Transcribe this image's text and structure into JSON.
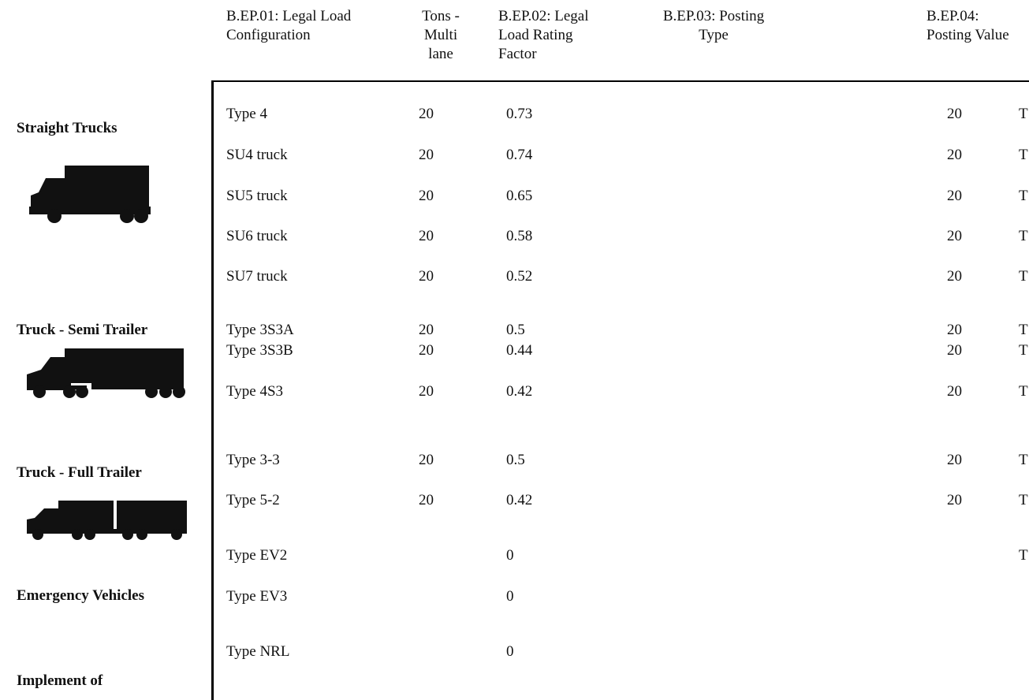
{
  "headers": {
    "config": [
      "B.EP.01: Legal Load",
      "Configuration"
    ],
    "tons": [
      "Tons -",
      "Multi",
      "lane"
    ],
    "rating": [
      "B.EP.02: Legal",
      "Load Rating",
      "Factor"
    ],
    "posting_type": [
      "B.EP.03: Posting",
      "Type"
    ],
    "posting_value": [
      "B.EP.04:",
      "Posting Value"
    ]
  },
  "groups": [
    {
      "label": "Straight Trucks",
      "icon": "straight-truck-icon"
    },
    {
      "label": "Truck - Semi Trailer",
      "icon": "semi-trailer-truck-icon"
    },
    {
      "label": "Truck - Full Trailer",
      "icon": "full-trailer-truck-icon"
    },
    {
      "label": "Emergency Vehicles",
      "icon": ""
    },
    {
      "label": "Implement of",
      "icon": ""
    }
  ],
  "rows": [
    {
      "config": "Type 4",
      "tons": "20",
      "rating": "0.73",
      "value": "20",
      "unit": "T"
    },
    {
      "config": "SU4 truck",
      "tons": "20",
      "rating": "0.74",
      "value": "20",
      "unit": "T"
    },
    {
      "config": "SU5 truck",
      "tons": "20",
      "rating": "0.65",
      "value": "20",
      "unit": "T"
    },
    {
      "config": "SU6 truck",
      "tons": "20",
      "rating": "0.58",
      "value": "20",
      "unit": "T"
    },
    {
      "config": "SU7 truck",
      "tons": "20",
      "rating": "0.52",
      "value": "20",
      "unit": "T"
    },
    {
      "config": "Type 3S3A",
      "tons": "20",
      "rating": "0.5",
      "value": "20",
      "unit": "T"
    },
    {
      "config": "Type 3S3B",
      "tons": "20",
      "rating": "0.44",
      "value": "20",
      "unit": "T"
    },
    {
      "config": "Type 4S3",
      "tons": "20",
      "rating": "0.42",
      "value": "20",
      "unit": "T"
    },
    {
      "config": "Type 3-3",
      "tons": "20",
      "rating": "0.5",
      "value": "20",
      "unit": "T"
    },
    {
      "config": "Type 5-2",
      "tons": "20",
      "rating": "0.42",
      "value": "20",
      "unit": "T"
    },
    {
      "config": "Type EV2",
      "tons": "",
      "rating": "0",
      "value": "",
      "unit": "T"
    },
    {
      "config": "Type EV3",
      "tons": "",
      "rating": "0",
      "value": "",
      "unit": ""
    },
    {
      "config": "Type NRL",
      "tons": "",
      "rating": "0",
      "value": "",
      "unit": ""
    }
  ]
}
